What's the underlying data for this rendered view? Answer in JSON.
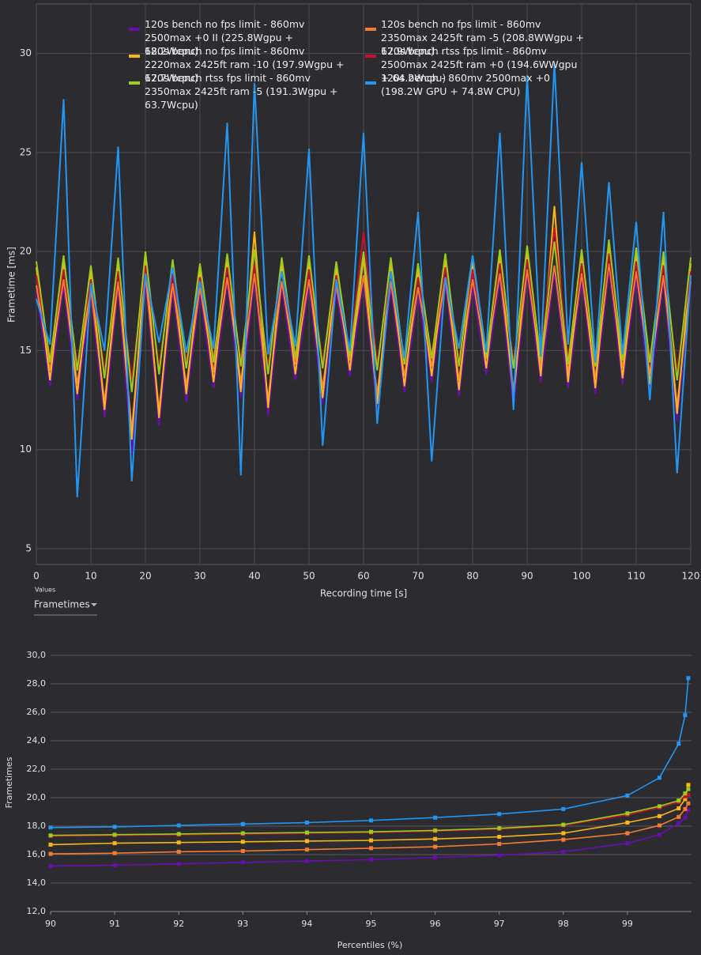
{
  "chart_data": [
    {
      "type": "line",
      "xlabel": "Recording time [s]",
      "ylabel": "Frametime [ms]",
      "x": [
        0,
        2.5,
        5,
        7.5,
        10,
        12.5,
        15,
        17.5,
        20,
        22.5,
        25,
        27.5,
        30,
        32.5,
        35,
        37.5,
        40,
        42.5,
        45,
        47.5,
        50,
        52.5,
        55,
        57.5,
        60,
        62.5,
        65,
        67.5,
        70,
        72.5,
        75,
        77.5,
        80,
        82.5,
        85,
        87.5,
        90,
        92.5,
        95,
        97.5,
        100,
        102.5,
        105,
        107.5,
        110,
        112.5,
        115,
        117.5,
        120
      ],
      "xlim": [
        0,
        120
      ],
      "xticks": [
        0,
        10,
        20,
        30,
        40,
        50,
        60,
        70,
        80,
        90,
        100,
        110,
        120
      ],
      "ylim": [
        4.2,
        32.5
      ],
      "yticks": [
        5,
        10,
        15,
        20,
        25,
        30
      ],
      "grid": true,
      "series": [
        {
          "name": "120s bench no fps limit - 860mv 2500max +0 II (225.8Wgpu + 68.2Wcpu)",
          "color": "#6a0dad",
          "values": [
            18.0,
            13.2,
            18.3,
            12.5,
            17.8,
            11.6,
            18.2,
            9.8,
            18.5,
            11.2,
            18.1,
            12.4,
            17.9,
            13.1,
            18.4,
            12.6,
            18.6,
            11.7,
            18.2,
            13.5,
            18.3,
            12.3,
            18.0,
            13.7,
            18.5,
            12.0,
            18.2,
            12.9,
            17.9,
            13.4,
            18.4,
            12.7,
            18.3,
            13.8,
            18.6,
            12.2,
            18.8,
            13.4,
            19.0,
            13.1,
            18.6,
            12.8,
            19.1,
            13.3,
            18.7,
            13.0,
            18.5,
            11.4,
            18.2
          ]
        },
        {
          "name": "120s bench no fps limit - 860mv 2350max 2425ft ram -5 (208.8WWgpu + 67.9Wcpu)",
          "color": "#f47c30",
          "values": [
            18.3,
            14.0,
            18.6,
            13.3,
            18.1,
            12.4,
            18.5,
            11.0,
            18.8,
            12.0,
            18.4,
            13.2,
            18.2,
            13.9,
            18.7,
            13.4,
            18.9,
            12.5,
            18.5,
            14.3,
            18.6,
            13.1,
            18.3,
            14.5,
            18.8,
            12.8,
            18.5,
            13.7,
            18.2,
            14.2,
            18.7,
            13.5,
            18.6,
            14.6,
            18.9,
            13.0,
            19.1,
            14.2,
            19.3,
            13.9,
            18.9,
            13.6,
            19.4,
            14.1,
            19.0,
            13.8,
            18.8,
            12.2,
            18.5
          ]
        },
        {
          "name": "120s bench no fps limit - 860mv 2220max 2425ft ram -10 (197.9Wgpu + 67.7Wcpu)",
          "color": "#fbb516",
          "values": [
            19.2,
            13.5,
            19.5,
            12.8,
            19.0,
            12.0,
            19.4,
            10.5,
            19.7,
            11.6,
            19.3,
            12.8,
            19.1,
            13.4,
            19.6,
            12.9,
            21.0,
            12.1,
            19.4,
            13.8,
            19.5,
            12.6,
            19.2,
            14.0,
            19.7,
            12.3,
            19.4,
            13.2,
            19.1,
            13.7,
            19.6,
            13.0,
            19.5,
            14.1,
            19.8,
            12.6,
            20.0,
            13.7,
            22.3,
            13.4,
            19.8,
            13.1,
            20.3,
            13.6,
            19.9,
            13.3,
            19.7,
            11.8,
            19.4
          ]
        },
        {
          "name": "120s bench rtss fps limit - 860mv 2500max 2425ft ram +0 (194.6WWgpu + 64.2Wcpu)",
          "color": "#c8102e",
          "values": [
            18.8,
            14.6,
            19.1,
            14.3,
            18.6,
            14.0,
            19.0,
            13.5,
            19.3,
            14.2,
            18.9,
            14.4,
            18.7,
            14.7,
            19.2,
            14.5,
            19.4,
            14.2,
            19.0,
            14.8,
            19.1,
            14.4,
            18.8,
            14.9,
            21.0,
            14.3,
            19.0,
            14.6,
            18.7,
            14.8,
            19.2,
            14.5,
            19.1,
            14.9,
            19.4,
            14.4,
            19.6,
            14.7,
            21.2,
            14.6,
            19.4,
            14.5,
            19.9,
            14.7,
            19.5,
            14.6,
            19.3,
            14.0,
            19.0
          ]
        },
        {
          "name": "120s bench rtss fps limit - 860mv 2350max 2425ft ram -5 (191.3Wgpu + 63.7Wcpu)",
          "color": "#9acd1a",
          "values": [
            19.5,
            14.4,
            19.8,
            14.0,
            19.3,
            13.6,
            19.7,
            12.9,
            20.0,
            13.8,
            19.6,
            14.1,
            19.4,
            14.4,
            19.9,
            14.2,
            20.1,
            13.8,
            19.7,
            14.6,
            19.8,
            14.1,
            19.5,
            14.7,
            20.0,
            14.0,
            19.7,
            14.3,
            19.4,
            14.6,
            19.9,
            14.2,
            19.8,
            14.7,
            20.1,
            14.1,
            20.3,
            14.5,
            20.5,
            14.3,
            20.1,
            14.2,
            20.6,
            14.5,
            20.2,
            14.4,
            20.0,
            13.5,
            19.7
          ]
        },
        {
          "name": "120s bench - 860mv 2500max +0 (198.2W GPU + 74.8W CPU)",
          "color": "#2196f3",
          "values": [
            17.6,
            15.3,
            27.7,
            7.6,
            18.4,
            15.0,
            25.3,
            8.4,
            18.9,
            15.4,
            19.2,
            14.9,
            18.5,
            15.1,
            26.5,
            8.7,
            28.5,
            14.8,
            19.0,
            15.2,
            25.2,
            10.2,
            18.6,
            15.0,
            26.0,
            11.3,
            19.0,
            14.6,
            22.0,
            9.4,
            18.7,
            15.1,
            19.8,
            14.9,
            26.0,
            12.0,
            28.9,
            14.7,
            29.5,
            15.3,
            24.5,
            14.4,
            23.5,
            14.8,
            21.5,
            12.5,
            22.0,
            8.8,
            18.8
          ]
        }
      ]
    },
    {
      "type": "line",
      "xlabel": "Percentiles (%)",
      "ylabel": "Frametimes",
      "x": [
        90,
        91,
        92,
        93,
        94,
        95,
        96,
        97,
        98,
        99,
        99.5,
        99.8,
        99.9,
        99.95
      ],
      "xlim": [
        90,
        100
      ],
      "xticks": [
        90,
        91,
        92,
        93,
        94,
        95,
        96,
        97,
        98,
        99
      ],
      "ylim": [
        12,
        30
      ],
      "yticks": [
        {
          "value": 12,
          "label": "12,0"
        },
        {
          "value": 14,
          "label": "14,0"
        },
        {
          "value": 16,
          "label": "16,0"
        },
        {
          "value": 18,
          "label": "18,0"
        },
        {
          "value": 20,
          "label": "20,0"
        },
        {
          "value": 22,
          "label": "22,0"
        },
        {
          "value": 24,
          "label": "24,0"
        },
        {
          "value": 26,
          "label": "26,0"
        },
        {
          "value": 28,
          "label": "28,0"
        },
        {
          "value": 30,
          "label": "30,0"
        }
      ],
      "grid": true,
      "series": [
        {
          "color": "#6a0dad",
          "values": [
            15.2,
            15.25,
            15.35,
            15.45,
            15.55,
            15.65,
            15.8,
            15.95,
            16.2,
            16.8,
            17.4,
            18.2,
            18.6,
            19.1
          ]
        },
        {
          "color": "#f47c30",
          "values": [
            16.05,
            16.1,
            16.2,
            16.25,
            16.35,
            16.45,
            16.55,
            16.75,
            17.05,
            17.5,
            18.05,
            18.65,
            19.2,
            19.6
          ]
        },
        {
          "color": "#fbb516",
          "values": [
            16.7,
            16.8,
            16.85,
            16.9,
            16.95,
            17.0,
            17.1,
            17.25,
            17.5,
            18.25,
            18.7,
            19.25,
            19.9,
            20.9
          ]
        },
        {
          "color": "#c8102e",
          "values": [
            17.3,
            17.35,
            17.4,
            17.45,
            17.5,
            17.55,
            17.65,
            17.8,
            18.05,
            18.8,
            19.3,
            19.7,
            20.1,
            20.2
          ]
        },
        {
          "color": "#9acd1a",
          "values": [
            17.35,
            17.4,
            17.45,
            17.5,
            17.55,
            17.6,
            17.7,
            17.85,
            18.1,
            18.9,
            19.4,
            19.8,
            20.3,
            20.6
          ]
        },
        {
          "color": "#2196f3",
          "values": [
            17.9,
            17.95,
            18.05,
            18.15,
            18.25,
            18.4,
            18.6,
            18.85,
            19.2,
            20.15,
            21.4,
            23.8,
            25.8,
            28.4
          ]
        }
      ]
    }
  ],
  "controls": {
    "values_label": "Values",
    "selector": "Frametimes"
  }
}
